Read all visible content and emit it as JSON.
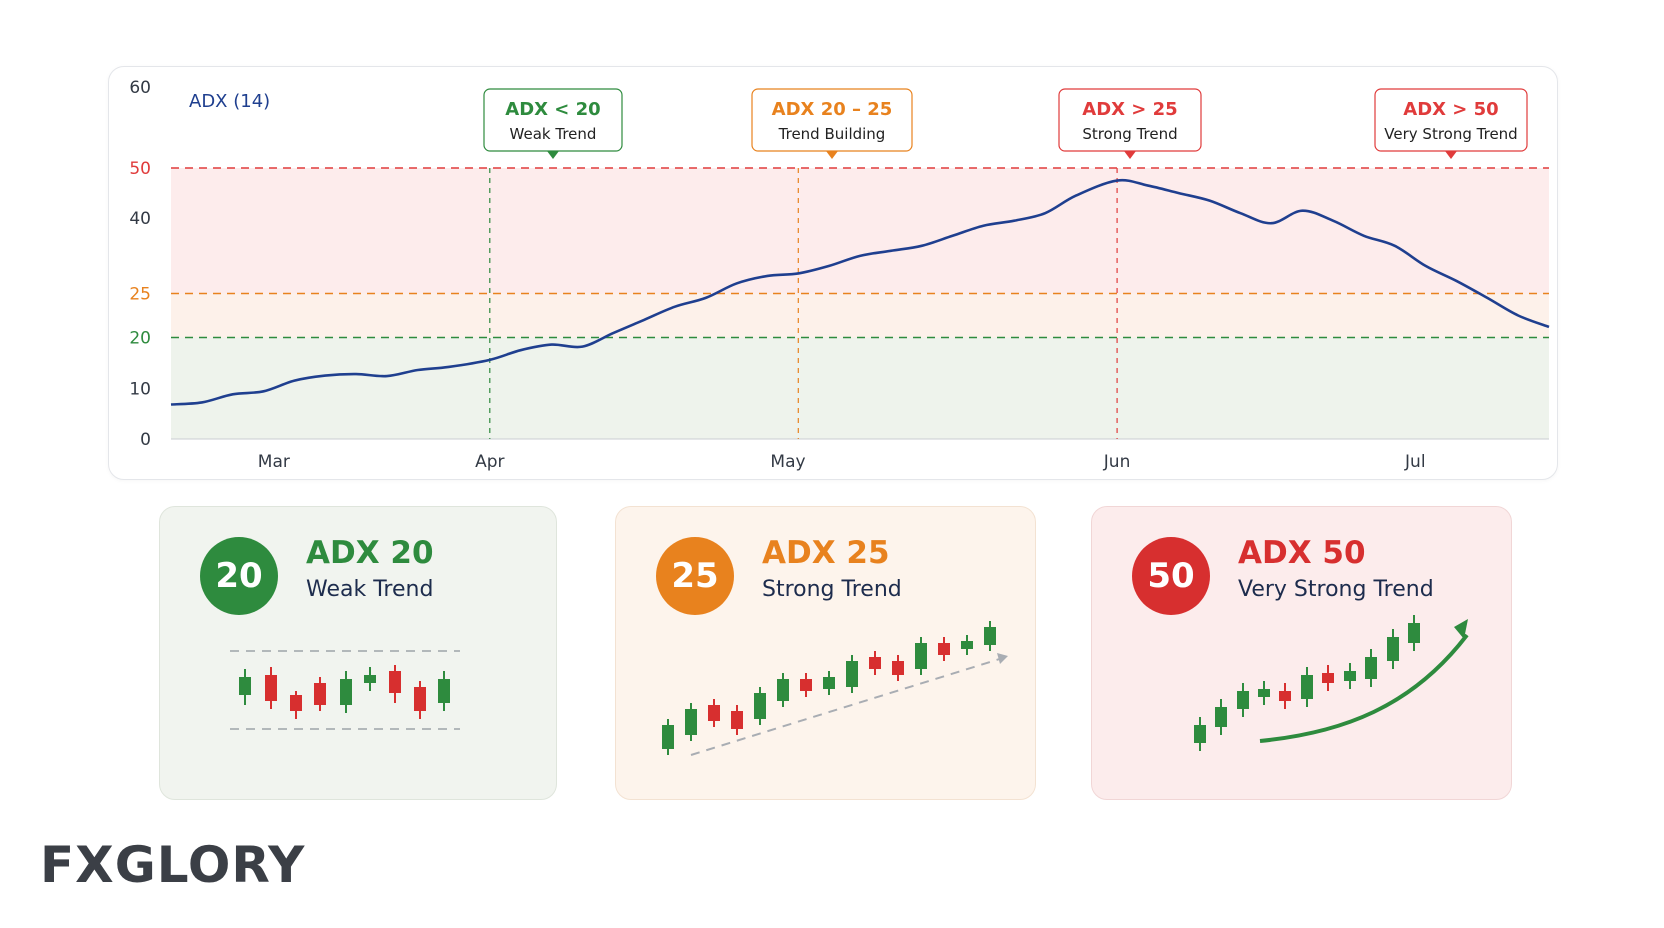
{
  "chart_data": {
    "type": "line",
    "series_label": "ADX (14)",
    "x_ticks": [
      "Mar",
      "Apr",
      "May",
      "Jun",
      "Jul"
    ],
    "y_ticks": [
      0,
      10,
      20,
      25,
      40,
      50,
      60
    ],
    "ylim": [
      0,
      60
    ],
    "thresholds": [
      {
        "value": 50,
        "color": "#e03b3b"
      },
      {
        "value": 25,
        "color": "#e8821e"
      },
      {
        "value": 20,
        "color": "#2e8b3e"
      }
    ],
    "series": [
      {
        "color": "#1f3f8f",
        "x": [
          "Mar 1",
          "Mar 4",
          "Mar 7",
          "Mar 10",
          "Mar 13",
          "Mar 16",
          "Mar 19",
          "Mar 22",
          "Mar 25",
          "Mar 28",
          "Apr 1",
          "Apr 4",
          "Apr 7",
          "Apr 10",
          "Apr 13",
          "Apr 16",
          "Apr 19",
          "Apr 22",
          "Apr 25",
          "Apr 28",
          "May 1",
          "May 4",
          "May 7",
          "May 10",
          "May 13",
          "May 16",
          "May 19",
          "May 22",
          "May 25",
          "May 28",
          "Jun 1",
          "Jun 4",
          "Jun 7",
          "Jun 10",
          "Jun 13",
          "Jun 16",
          "Jun 19",
          "Jun 22",
          "Jun 25",
          "Jun 28",
          "Jul 1",
          "Jul 4",
          "Jul 7",
          "Jul 10",
          "Jul 13"
        ],
        "values": [
          6.8,
          7.2,
          8.8,
          9.4,
          11.5,
          12.5,
          12.8,
          12.4,
          13.6,
          14.2,
          15.6,
          17.5,
          18.6,
          18.2,
          20.5,
          22,
          23.5,
          24.5,
          27,
          28.5,
          29,
          30.5,
          32.5,
          33.5,
          34.5,
          36.5,
          38.5,
          39.5,
          41,
          44.5,
          47.5,
          46.5,
          45,
          43.5,
          41,
          39,
          41.5,
          39.5,
          36.5,
          34.5,
          30.5,
          27.5,
          24.5,
          22.5,
          21.2
        ]
      }
    ]
  },
  "callouts": [
    {
      "title": "ADX < 20",
      "sub": "Weak Trend",
      "color": "#2e8b3e",
      "bg": "#ffffff"
    },
    {
      "title": "ADX 20 – 25",
      "sub": "Trend Building",
      "color": "#e8821e",
      "bg": "#ffffff"
    },
    {
      "title": "ADX > 25",
      "sub": "Strong Trend",
      "color": "#e03b3b",
      "bg": "#ffffff"
    },
    {
      "title": "ADX > 50",
      "sub": "Very Strong Trend",
      "color": "#e03b3b",
      "bg": "#ffffff"
    }
  ],
  "cards": [
    {
      "badge": "20",
      "title": "ADX 20",
      "sub": "Weak Trend",
      "color": "#2e8b3e"
    },
    {
      "badge": "25",
      "title": "ADX 25",
      "sub": "Strong Trend",
      "color": "#e8821e"
    },
    {
      "badge": "50",
      "title": "ADX 50",
      "sub": "Very Strong Trend",
      "color": "#d72f2f"
    }
  ],
  "logo": {
    "pre": "FX",
    "accent": "",
    "post": "GLORY"
  }
}
